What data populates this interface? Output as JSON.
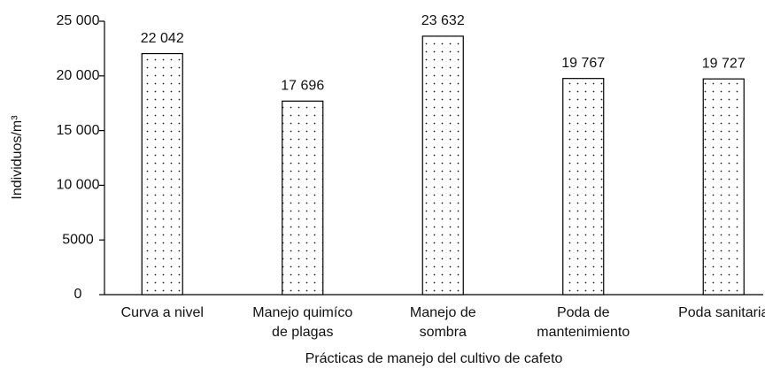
{
  "chart_data": {
    "type": "bar",
    "categories": [
      "Curva a nivel",
      "Manejo quimíco de plagas",
      "Manejo de sombra",
      "Poda de mantenimiento",
      "Poda sanitaria"
    ],
    "values": [
      22042,
      17696,
      23632,
      19767,
      19727
    ],
    "value_labels": [
      "22 042",
      "17 696",
      "23 632",
      "19 767",
      "19 727"
    ],
    "color": "#ffffff",
    "ylim": [
      0,
      25000
    ],
    "yticks": [
      0,
      5000,
      {
        "value": 10000,
        "label": "10 000"
      },
      {
        "value": 15000,
        "label": "15 000"
      },
      {
        "value": 20000,
        "label": "20 000"
      },
      {
        "value": 25000,
        "label": "25 000"
      }
    ],
    "ylabel": "Individuos/m³",
    "xlabel": "Prácticas de manejo del cultivo de cafeto",
    "grid": false
  }
}
